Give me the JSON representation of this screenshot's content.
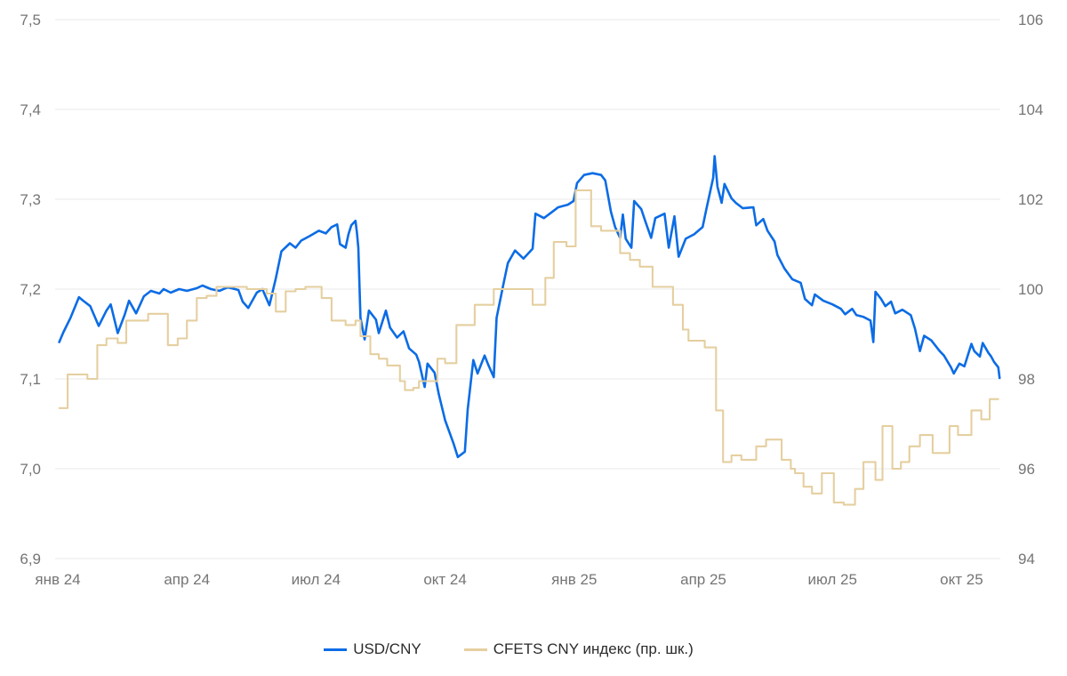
{
  "chart_data": {
    "type": "line",
    "title": "",
    "grid": true,
    "background_color": "#ffffff",
    "gridline_color": "#e8e8e8",
    "axis_label_color": "#757575",
    "legend_text_color": "#2b2b2b",
    "legend_position": "bottom-center",
    "left_axis": {
      "min": 6.9,
      "max": 7.5,
      "tick_values": [
        7.5,
        7.4,
        7.3,
        7.2,
        7.1,
        7.0,
        6.9
      ],
      "tick_labels": [
        "7,5",
        "7,4",
        "7,3",
        "7,2",
        "7,1",
        "7,0",
        "6,9"
      ]
    },
    "right_axis": {
      "min": 94,
      "max": 106,
      "tick_values": [
        106,
        104,
        102,
        100,
        98,
        96,
        94
      ],
      "tick_labels": [
        "106",
        "104",
        "102",
        "100",
        "98",
        "96",
        "94"
      ]
    },
    "x_axis": {
      "start": "2024-01-01",
      "end": "2025-10-28",
      "tick_labels": [
        "янв 24",
        "апр 24",
        "июл 24",
        "окт 24",
        "янв 25",
        "апр 25",
        "июл 25",
        "окт 25"
      ],
      "tick_months_from_start": [
        0,
        3,
        6,
        9,
        12,
        15,
        18,
        21
      ]
    },
    "series": [
      {
        "name": "USD/CNY",
        "axis": "left",
        "color": "#0b6ce5",
        "interpolation": "linear",
        "points": [
          [
            "2024-01-02",
            7.141
          ],
          [
            "2024-01-05",
            7.152
          ],
          [
            "2024-01-10",
            7.168
          ],
          [
            "2024-01-16",
            7.191
          ],
          [
            "2024-01-19",
            7.187
          ],
          [
            "2024-01-24",
            7.181
          ],
          [
            "2024-01-30",
            7.159
          ],
          [
            "2024-02-05",
            7.176
          ],
          [
            "2024-02-08",
            7.183
          ],
          [
            "2024-02-13",
            7.151
          ],
          [
            "2024-02-18",
            7.172
          ],
          [
            "2024-02-21",
            7.187
          ],
          [
            "2024-02-26",
            7.173
          ],
          [
            "2024-03-01",
            7.192
          ],
          [
            "2024-03-06",
            7.198
          ],
          [
            "2024-03-12",
            7.195
          ],
          [
            "2024-03-15",
            7.2
          ],
          [
            "2024-03-20",
            7.196
          ],
          [
            "2024-03-26",
            7.2
          ],
          [
            "2024-04-01",
            7.198
          ],
          [
            "2024-04-08",
            7.201
          ],
          [
            "2024-04-12",
            7.204
          ],
          [
            "2024-04-18",
            7.2
          ],
          [
            "2024-04-24",
            7.198
          ],
          [
            "2024-04-30",
            7.202
          ],
          [
            "2024-05-07",
            7.199
          ],
          [
            "2024-05-10",
            7.186
          ],
          [
            "2024-05-14",
            7.179
          ],
          [
            "2024-05-20",
            7.196
          ],
          [
            "2024-05-24",
            7.2
          ],
          [
            "2024-05-29",
            7.182
          ],
          [
            "2024-06-03",
            7.212
          ],
          [
            "2024-06-07",
            7.242
          ],
          [
            "2024-06-13",
            7.251
          ],
          [
            "2024-06-17",
            7.246
          ],
          [
            "2024-06-21",
            7.254
          ],
          [
            "2024-06-27",
            7.259
          ],
          [
            "2024-07-03",
            7.265
          ],
          [
            "2024-07-08",
            7.262
          ],
          [
            "2024-07-12",
            7.269
          ],
          [
            "2024-07-16",
            7.272
          ],
          [
            "2024-07-18",
            7.25
          ],
          [
            "2024-07-22",
            7.246
          ],
          [
            "2024-07-24",
            7.261
          ],
          [
            "2024-07-26",
            7.271
          ],
          [
            "2024-07-29",
            7.276
          ],
          [
            "2024-07-30",
            7.263
          ],
          [
            "2024-07-31",
            7.246
          ],
          [
            "2024-08-02",
            7.168
          ],
          [
            "2024-08-05",
            7.144
          ],
          [
            "2024-08-08",
            7.176
          ],
          [
            "2024-08-13",
            7.166
          ],
          [
            "2024-08-15",
            7.151
          ],
          [
            "2024-08-20",
            7.176
          ],
          [
            "2024-08-23",
            7.157
          ],
          [
            "2024-08-28",
            7.146
          ],
          [
            "2024-09-02",
            7.153
          ],
          [
            "2024-09-06",
            7.134
          ],
          [
            "2024-09-11",
            7.127
          ],
          [
            "2024-09-13",
            7.119
          ],
          [
            "2024-09-17",
            7.091
          ],
          [
            "2024-09-19",
            7.117
          ],
          [
            "2024-09-24",
            7.107
          ],
          [
            "2024-09-27",
            7.083
          ],
          [
            "2024-10-01",
            7.054
          ],
          [
            "2024-10-07",
            7.028
          ],
          [
            "2024-10-10",
            7.013
          ],
          [
            "2024-10-15",
            7.019
          ],
          [
            "2024-10-17",
            7.066
          ],
          [
            "2024-10-21",
            7.121
          ],
          [
            "2024-10-24",
            7.106
          ],
          [
            "2024-10-29",
            7.126
          ],
          [
            "2024-11-01",
            7.116
          ],
          [
            "2024-11-05",
            7.102
          ],
          [
            "2024-11-07",
            7.168
          ],
          [
            "2024-11-12",
            7.207
          ],
          [
            "2024-11-15",
            7.229
          ],
          [
            "2024-11-20",
            7.243
          ],
          [
            "2024-11-26",
            7.234
          ],
          [
            "2024-12-02",
            7.245
          ],
          [
            "2024-12-04",
            7.284
          ],
          [
            "2024-12-10",
            7.279
          ],
          [
            "2024-12-16",
            7.286
          ],
          [
            "2024-12-20",
            7.291
          ],
          [
            "2024-12-27",
            7.294
          ],
          [
            "2024-12-31",
            7.298
          ],
          [
            "2025-01-03",
            7.318
          ],
          [
            "2025-01-08",
            7.327
          ],
          [
            "2025-01-14",
            7.329
          ],
          [
            "2025-01-20",
            7.327
          ],
          [
            "2025-01-23",
            7.321
          ],
          [
            "2025-01-27",
            7.286
          ],
          [
            "2025-01-30",
            7.269
          ],
          [
            "2025-02-03",
            7.257
          ],
          [
            "2025-02-05",
            7.283
          ],
          [
            "2025-02-07",
            7.256
          ],
          [
            "2025-02-11",
            7.246
          ],
          [
            "2025-02-13",
            7.298
          ],
          [
            "2025-02-18",
            7.289
          ],
          [
            "2025-02-21",
            7.275
          ],
          [
            "2025-02-25",
            7.257
          ],
          [
            "2025-02-28",
            7.279
          ],
          [
            "2025-03-04",
            7.284
          ],
          [
            "2025-03-07",
            7.246
          ],
          [
            "2025-03-11",
            7.281
          ],
          [
            "2025-03-14",
            7.236
          ],
          [
            "2025-03-19",
            7.256
          ],
          [
            "2025-03-25",
            7.261
          ],
          [
            "2025-03-31",
            7.269
          ],
          [
            "2025-04-03",
            7.288
          ],
          [
            "2025-04-08",
            7.324
          ],
          [
            "2025-04-09",
            7.348
          ],
          [
            "2025-04-10",
            7.331
          ],
          [
            "2025-04-11",
            7.314
          ],
          [
            "2025-04-14",
            7.296
          ],
          [
            "2025-04-16",
            7.317
          ],
          [
            "2025-04-21",
            7.301
          ],
          [
            "2025-04-24",
            7.296
          ],
          [
            "2025-04-29",
            7.29
          ],
          [
            "2025-05-06",
            7.291
          ],
          [
            "2025-05-08",
            7.271
          ],
          [
            "2025-05-13",
            7.278
          ],
          [
            "2025-05-16",
            7.265
          ],
          [
            "2025-05-21",
            7.253
          ],
          [
            "2025-05-23",
            7.238
          ],
          [
            "2025-05-28",
            7.223
          ],
          [
            "2025-06-03",
            7.211
          ],
          [
            "2025-06-09",
            7.207
          ],
          [
            "2025-06-12",
            7.189
          ],
          [
            "2025-06-17",
            7.182
          ],
          [
            "2025-06-19",
            7.194
          ],
          [
            "2025-06-25",
            7.187
          ],
          [
            "2025-07-01",
            7.183
          ],
          [
            "2025-07-07",
            7.178
          ],
          [
            "2025-07-10",
            7.172
          ],
          [
            "2025-07-15",
            7.178
          ],
          [
            "2025-07-18",
            7.171
          ],
          [
            "2025-07-23",
            7.169
          ],
          [
            "2025-07-28",
            7.165
          ],
          [
            "2025-07-30",
            7.141
          ],
          [
            "2025-08-01",
            7.197
          ],
          [
            "2025-08-05",
            7.189
          ],
          [
            "2025-08-08",
            7.181
          ],
          [
            "2025-08-12",
            7.186
          ],
          [
            "2025-08-15",
            7.173
          ],
          [
            "2025-08-20",
            7.177
          ],
          [
            "2025-08-26",
            7.171
          ],
          [
            "2025-08-29",
            7.156
          ],
          [
            "2025-09-02",
            7.131
          ],
          [
            "2025-09-05",
            7.148
          ],
          [
            "2025-09-10",
            7.143
          ],
          [
            "2025-09-16",
            7.131
          ],
          [
            "2025-09-19",
            7.126
          ],
          [
            "2025-09-24",
            7.113
          ],
          [
            "2025-09-26",
            7.106
          ],
          [
            "2025-09-30",
            7.117
          ],
          [
            "2025-10-03",
            7.114
          ],
          [
            "2025-10-08",
            7.139
          ],
          [
            "2025-10-10",
            7.131
          ],
          [
            "2025-10-14",
            7.125
          ],
          [
            "2025-10-16",
            7.14
          ],
          [
            "2025-10-20",
            7.129
          ],
          [
            "2025-10-22",
            7.125
          ],
          [
            "2025-10-24",
            7.119
          ],
          [
            "2025-10-27",
            7.113
          ],
          [
            "2025-10-28",
            7.101
          ]
        ]
      },
      {
        "name": "CFETS CNY индекс (пр. шк.)",
        "axis": "right",
        "color": "#e5cfa0",
        "interpolation": "step-after",
        "points": [
          [
            "2024-01-02",
            97.35
          ],
          [
            "2024-01-08",
            98.1
          ],
          [
            "2024-01-22",
            98.0
          ],
          [
            "2024-01-29",
            98.75
          ],
          [
            "2024-02-05",
            98.9
          ],
          [
            "2024-02-13",
            98.8
          ],
          [
            "2024-02-19",
            99.3
          ],
          [
            "2024-03-04",
            99.45
          ],
          [
            "2024-03-18",
            98.75
          ],
          [
            "2024-03-25",
            98.9
          ],
          [
            "2024-04-01",
            99.3
          ],
          [
            "2024-04-08",
            99.8
          ],
          [
            "2024-04-15",
            99.85
          ],
          [
            "2024-04-22",
            100.05
          ],
          [
            "2024-05-13",
            100.0
          ],
          [
            "2024-05-27",
            99.9
          ],
          [
            "2024-06-03",
            99.5
          ],
          [
            "2024-06-10",
            99.95
          ],
          [
            "2024-06-17",
            100.0
          ],
          [
            "2024-06-24",
            100.05
          ],
          [
            "2024-07-05",
            99.8
          ],
          [
            "2024-07-12",
            99.3
          ],
          [
            "2024-07-22",
            99.2
          ],
          [
            "2024-07-29",
            99.3
          ],
          [
            "2024-08-02",
            98.95
          ],
          [
            "2024-08-09",
            98.55
          ],
          [
            "2024-08-15",
            98.45
          ],
          [
            "2024-08-21",
            98.3
          ],
          [
            "2024-08-30",
            97.95
          ],
          [
            "2024-09-03",
            97.75
          ],
          [
            "2024-09-09",
            97.8
          ],
          [
            "2024-09-13",
            97.95
          ],
          [
            "2024-09-26",
            98.45
          ],
          [
            "2024-10-01",
            98.35
          ],
          [
            "2024-10-09",
            99.2
          ],
          [
            "2024-10-22",
            99.65
          ],
          [
            "2024-11-05",
            100.0
          ],
          [
            "2024-12-02",
            99.65
          ],
          [
            "2024-12-11",
            100.25
          ],
          [
            "2024-12-17",
            101.05
          ],
          [
            "2024-12-26",
            100.95
          ],
          [
            "2025-01-02",
            102.2
          ],
          [
            "2025-01-13",
            101.4
          ],
          [
            "2025-01-20",
            101.3
          ],
          [
            "2025-02-03",
            100.8
          ],
          [
            "2025-02-10",
            100.65
          ],
          [
            "2025-02-17",
            100.5
          ],
          [
            "2025-02-26",
            100.05
          ],
          [
            "2025-03-10",
            99.65
          ],
          [
            "2025-03-17",
            99.1
          ],
          [
            "2025-03-21",
            98.85
          ],
          [
            "2025-04-02",
            98.7
          ],
          [
            "2025-04-10",
            97.3
          ],
          [
            "2025-04-15",
            96.15
          ],
          [
            "2025-04-21",
            96.3
          ],
          [
            "2025-04-28",
            96.2
          ],
          [
            "2025-05-08",
            96.5
          ],
          [
            "2025-05-15",
            96.65
          ],
          [
            "2025-05-26",
            96.2
          ],
          [
            "2025-06-02",
            96.0
          ],
          [
            "2025-06-05",
            95.9
          ],
          [
            "2025-06-11",
            95.6
          ],
          [
            "2025-06-17",
            95.45
          ],
          [
            "2025-06-24",
            95.9
          ],
          [
            "2025-07-02",
            95.25
          ],
          [
            "2025-07-09",
            95.2
          ],
          [
            "2025-07-17",
            95.55
          ],
          [
            "2025-07-23",
            96.15
          ],
          [
            "2025-08-01",
            95.75
          ],
          [
            "2025-08-06",
            96.95
          ],
          [
            "2025-08-13",
            96.0
          ],
          [
            "2025-08-19",
            96.15
          ],
          [
            "2025-08-25",
            96.5
          ],
          [
            "2025-09-02",
            96.75
          ],
          [
            "2025-09-11",
            96.35
          ],
          [
            "2025-09-23",
            96.95
          ],
          [
            "2025-09-29",
            96.75
          ],
          [
            "2025-10-08",
            97.3
          ],
          [
            "2025-10-15",
            97.1
          ],
          [
            "2025-10-21",
            97.55
          ],
          [
            "2025-10-27",
            97.55
          ]
        ]
      }
    ]
  },
  "legend": {
    "items": [
      {
        "label": "USD/CNY",
        "color": "#0b6ce5"
      },
      {
        "label": "CFETS CNY индекс (пр. шк.)",
        "color": "#e5cfa0"
      }
    ]
  }
}
